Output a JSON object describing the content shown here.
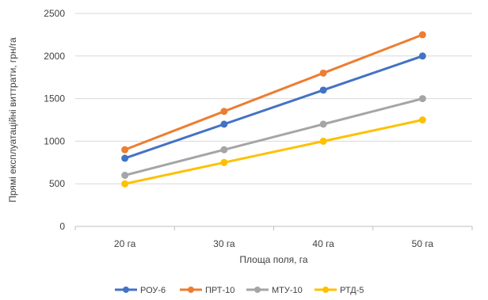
{
  "chart_data": {
    "type": "line",
    "title": "",
    "xlabel": "Площа поля, га",
    "ylabel": "Прямі експлуатаційні виттрати, грн/га",
    "categories": [
      "20 га",
      "30 га",
      "40 га",
      "50 га"
    ],
    "ylim": [
      0,
      2500
    ],
    "yticks": [
      0,
      500,
      1000,
      1500,
      2000,
      2500
    ],
    "grid": "horizontal",
    "legend": "bottom",
    "series": [
      {
        "name": "РОУ-6",
        "color": "#4472C4",
        "values": [
          800,
          1200,
          1600,
          2000
        ]
      },
      {
        "name": "ПРТ-10",
        "color": "#ED7D31",
        "values": [
          900,
          1350,
          1800,
          2250
        ]
      },
      {
        "name": "МТУ-10",
        "color": "#A5A5A5",
        "values": [
          600,
          900,
          1200,
          1500
        ]
      },
      {
        "name": "РТД-5",
        "color": "#FFC000",
        "values": [
          500,
          750,
          1000,
          1250
        ]
      }
    ]
  }
}
